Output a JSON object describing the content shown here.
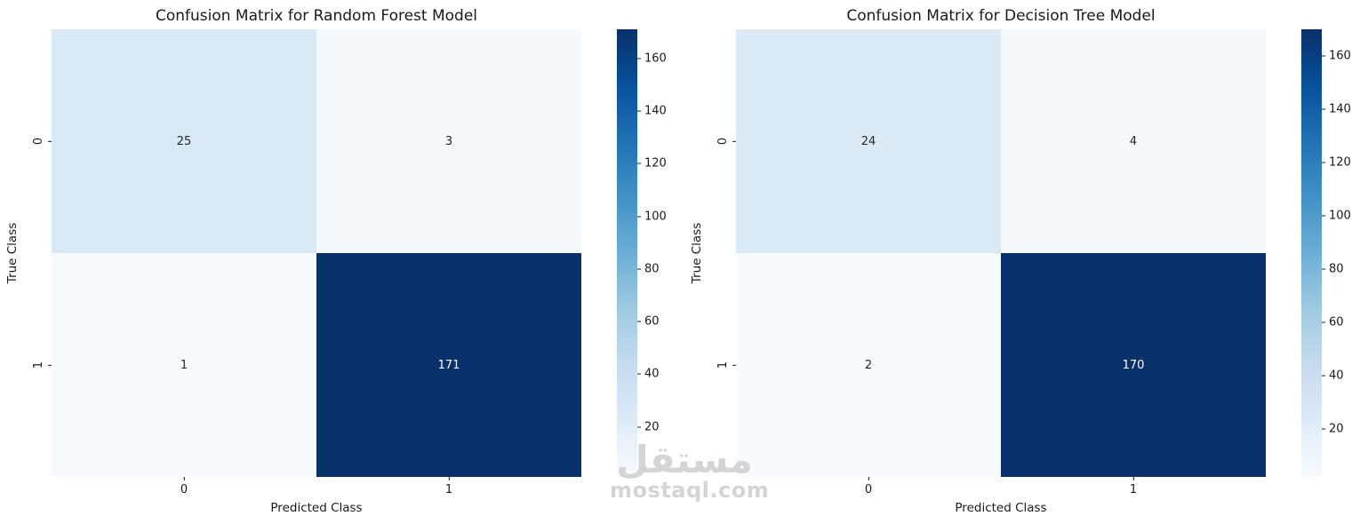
{
  "figure": {
    "background": "#ffffff",
    "watermark": {
      "arabic": "مستقل",
      "latin": "mostaql.com",
      "color": "#d4d4d4"
    }
  },
  "chart_data": [
    {
      "type": "heatmap",
      "title": "Confusion Matrix for Random Forest Model",
      "xlabel": "Predicted Class",
      "ylabel": "True Class",
      "x_tick_labels": [
        "0",
        "1"
      ],
      "y_tick_labels": [
        "0",
        "1"
      ],
      "matrix": [
        [
          25,
          3
        ],
        [
          1,
          171
        ]
      ],
      "colormap": "Blues",
      "vmin": 1,
      "vmax": 171,
      "colorbar_ticks": [
        20,
        40,
        60,
        80,
        100,
        120,
        140,
        160
      ],
      "colormap_stops": [
        "#f7fbff",
        "#deebf7",
        "#c6dbef",
        "#9ecae1",
        "#6baed6",
        "#4292c6",
        "#2171b5",
        "#08519c",
        "#08306b"
      ],
      "cell_colors": [
        [
          "#d9e8f5",
          "#f4f9fd"
        ],
        [
          "#f7fbff",
          "#08306b"
        ]
      ],
      "cell_text_colors": [
        [
          "#262626",
          "#262626"
        ],
        [
          "#262626",
          "#ffffff"
        ]
      ],
      "legend_position": "right-colorbar",
      "grid": false
    },
    {
      "type": "heatmap",
      "title": "Confusion Matrix for Decision Tree Model",
      "xlabel": "Predicted Class",
      "ylabel": "True Class",
      "x_tick_labels": [
        "0",
        "1"
      ],
      "y_tick_labels": [
        "0",
        "1"
      ],
      "matrix": [
        [
          24,
          4
        ],
        [
          2,
          170
        ]
      ],
      "colormap": "Blues",
      "vmin": 2,
      "vmax": 170,
      "colorbar_ticks": [
        20,
        40,
        60,
        80,
        100,
        120,
        140,
        160
      ],
      "colormap_stops": [
        "#f7fbff",
        "#deebf7",
        "#c6dbef",
        "#9ecae1",
        "#6baed6",
        "#4292c6",
        "#2171b5",
        "#08519c",
        "#08306b"
      ],
      "cell_colors": [
        [
          "#dceaf6",
          "#f4f9fd"
        ],
        [
          "#f7fbff",
          "#08306b"
        ]
      ],
      "cell_text_colors": [
        [
          "#262626",
          "#262626"
        ],
        [
          "#262626",
          "#ffffff"
        ]
      ],
      "legend_position": "right-colorbar",
      "grid": false
    }
  ]
}
